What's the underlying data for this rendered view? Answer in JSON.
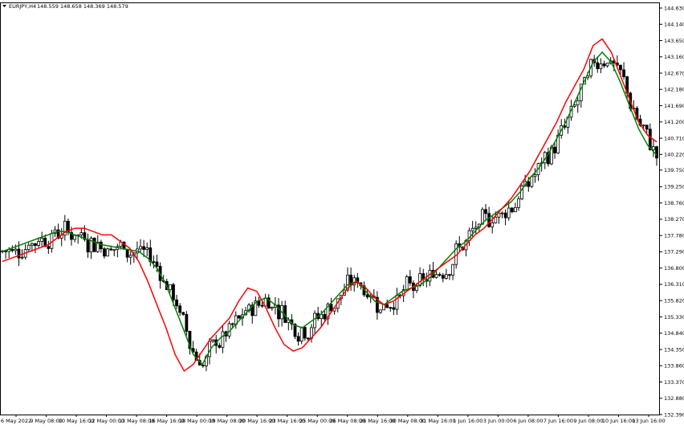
{
  "header": {
    "symbol": "EURJPY,H4",
    "ohlc": "148.559 148.658 148.369 148.579"
  },
  "chart_data": {
    "type": "candlestick",
    "symbol": "EURJPY",
    "timeframe": "H4",
    "ylim": [
      132.39,
      144.63
    ],
    "yticks": [
      "144.630",
      "144.140",
      "143.650",
      "143.160",
      "142.670",
      "142.180",
      "141.690",
      "141.200",
      "140.710",
      "140.220",
      "139.750",
      "139.250",
      "138.760",
      "138.270",
      "137.780",
      "137.290",
      "136.800",
      "136.310",
      "135.820",
      "135.330",
      "134.840",
      "134.350",
      "133.860",
      "133.370",
      "132.880",
      "132.390"
    ],
    "xticks": [
      "6 May 2022",
      "9 May 08:00",
      "10 May 16:00",
      "12 May 00:00",
      "13 May 08:00",
      "16 May 16:00",
      "18 May 00:00",
      "19 May 08:00",
      "20 May 16:00",
      "23 May 16:00",
      "25 May 00:00",
      "26 May 08:00",
      "26 May 16:00",
      "30 May 08:00",
      "31 May 16:00",
      "1 Jun 16:00",
      "3 Jun 00:00",
      "6 Jun 08:00",
      "7 Jun 16:00",
      "9 Jun 08:00",
      "10 Jun 16:00",
      "13 Jun 16:00"
    ],
    "grid": false,
    "series": [
      {
        "type": "candlestick",
        "bull_color": "#ffffff",
        "bear_color": "#000000",
        "outline_color": "#000000"
      },
      {
        "type": "line",
        "color": "#008000",
        "values": [
          137.3,
          137.4,
          137.5,
          137.6,
          137.7,
          137.8,
          137.9,
          137.9,
          137.8,
          137.7,
          137.6,
          137.5,
          137.45,
          137.4,
          137.35,
          137.3,
          137.1,
          136.8,
          136.3,
          135.6,
          134.9,
          134.2,
          133.9,
          134.4,
          134.7,
          134.9,
          135.2,
          135.5,
          135.8,
          135.9,
          135.7,
          135.4,
          135.1,
          135.0,
          135.2,
          135.4,
          135.7,
          136.0,
          136.3,
          136.4,
          136.1,
          135.8,
          135.7,
          135.9,
          136.1,
          136.2,
          136.3,
          136.5,
          136.8,
          137.1,
          137.4,
          137.6,
          137.9,
          138.2,
          138.4,
          138.6,
          138.8,
          139.1,
          139.5,
          139.8,
          140.2,
          140.7,
          141.2,
          141.8,
          142.4,
          143.0,
          143.3,
          143.0,
          142.4,
          141.7,
          141.0,
          140.5,
          140.2
        ]
      },
      {
        "type": "line",
        "color": "#ff0000",
        "values": [
          137.0,
          137.1,
          137.2,
          137.3,
          137.4,
          137.5,
          137.7,
          137.9,
          138.0,
          138.0,
          137.9,
          137.8,
          137.8,
          137.6,
          137.4,
          137.0,
          136.4,
          135.7,
          135.0,
          134.2,
          133.7,
          133.9,
          134.3,
          134.7,
          135.0,
          135.3,
          135.8,
          136.2,
          136.1,
          135.6,
          135.0,
          134.5,
          134.3,
          134.4,
          134.7,
          135.0,
          135.4,
          135.8,
          136.2,
          136.4,
          136.2,
          135.9,
          135.7,
          135.8,
          136.0,
          136.2,
          136.4,
          136.6,
          136.8,
          137.0,
          137.2,
          137.5,
          137.8,
          138.0,
          138.3,
          138.6,
          138.9,
          139.3,
          139.7,
          140.2,
          140.7,
          141.2,
          141.8,
          142.3,
          142.8,
          143.5,
          143.7,
          143.3,
          142.6,
          141.9,
          141.2,
          140.8,
          140.6
        ]
      }
    ]
  }
}
